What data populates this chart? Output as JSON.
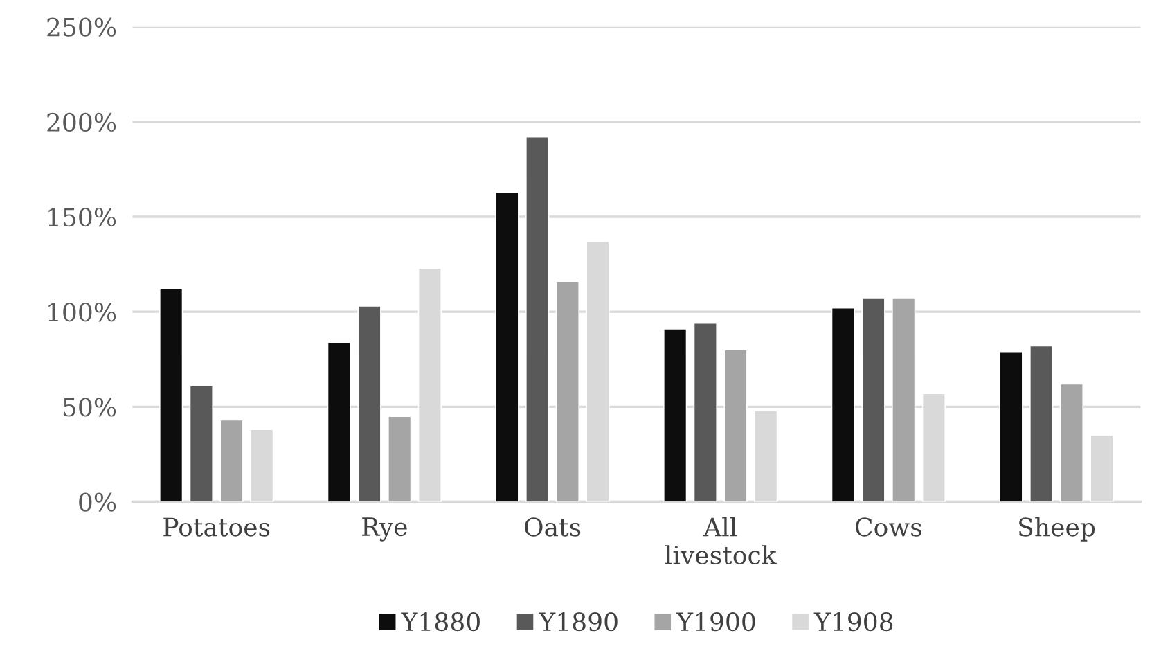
{
  "chart_data": {
    "type": "bar",
    "categories": [
      "Potatoes",
      "Rye",
      "Oats",
      "All\nlivestock",
      "Cows",
      "Sheep"
    ],
    "series": [
      {
        "name": "Y1880",
        "color": "#0d0d0d",
        "values": [
          112,
          84,
          163,
          91,
          102,
          79
        ]
      },
      {
        "name": "Y1890",
        "color": "#595959",
        "values": [
          61,
          103,
          192,
          94,
          107,
          82
        ]
      },
      {
        "name": "Y1900",
        "color": "#a5a5a5",
        "values": [
          43,
          45,
          116,
          80,
          107,
          62
        ]
      },
      {
        "name": "Y1908",
        "color": "#d9d9d9",
        "values": [
          38,
          123,
          137,
          48,
          57,
          35
        ]
      }
    ],
    "ylim": [
      0,
      250
    ],
    "yticks": [
      {
        "value": 0,
        "label": "0%"
      },
      {
        "value": 50,
        "label": "50%"
      },
      {
        "value": 100,
        "label": "100%"
      },
      {
        "value": 150,
        "label": "150%"
      },
      {
        "value": 200,
        "label": "200%"
      },
      {
        "value": 250,
        "label": "250%"
      }
    ],
    "grid": "y",
    "legend": "bottom"
  }
}
